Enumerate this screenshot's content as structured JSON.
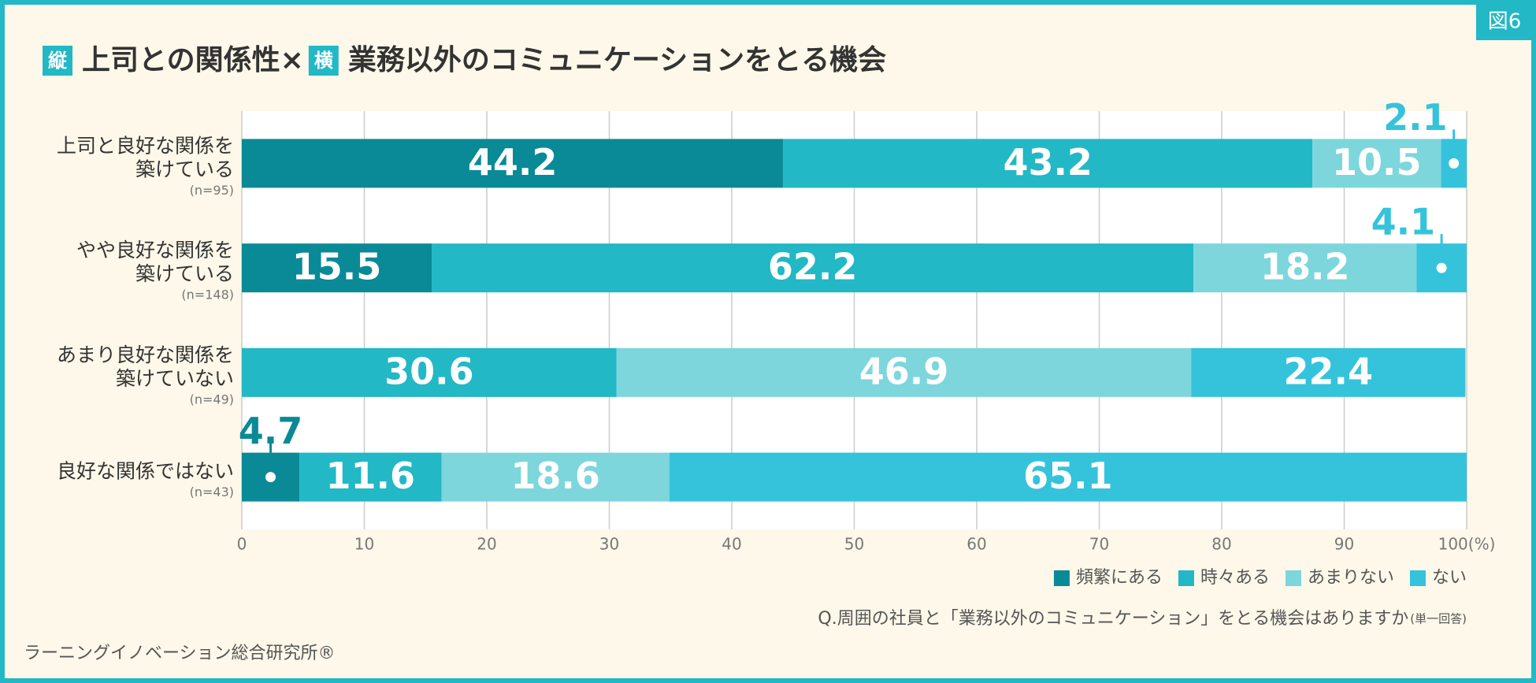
{
  "chart_data": {
    "type": "stacked-barh",
    "figure_tag": "図6",
    "title": {
      "badge_1": "縦",
      "text_1": "上司との関係性×",
      "badge_2": "横",
      "text_2": "業務以外のコミュニケーションをとる機会"
    },
    "categories": [
      [
        "上司と良好な関係を",
        "築けている"
      ],
      [
        "やや良好な関係を",
        "築けている"
      ],
      [
        "あまり良好な関係を",
        "築けていない"
      ],
      [
        "良好な関係ではない"
      ]
    ],
    "sample_sizes": [
      "(n=95)",
      "(n=148)",
      "(n=49)",
      "(n=43)"
    ],
    "series": [
      {
        "name": "頻繁にある",
        "color": "#0a8a96",
        "values": [
          44.2,
          15.5,
          null,
          4.7
        ]
      },
      {
        "name": "時々ある",
        "color": "#22b8c5",
        "values": [
          43.2,
          62.2,
          30.6,
          11.6
        ]
      },
      {
        "name": "あまりない",
        "color": "#7dd6dc",
        "values": [
          10.5,
          18.2,
          46.9,
          18.6
        ]
      },
      {
        "name": "ない",
        "color": "#35c3dc",
        "values": [
          2.1,
          4.1,
          22.4,
          65.1
        ]
      }
    ],
    "xlim": [
      0,
      100
    ],
    "xticks": [
      0,
      10,
      20,
      30,
      40,
      50,
      60,
      70,
      80,
      90,
      {
        "value": 100,
        "label": "100(%)"
      }
    ],
    "grid": true,
    "legend": "bottom-right",
    "note": "Q.周囲の社員と「業務以外のコミュニケーション」をとる機会はありますか",
    "note_suffix": "(単一回答)",
    "source": "ラーニングイノベーション総合研究所®"
  }
}
